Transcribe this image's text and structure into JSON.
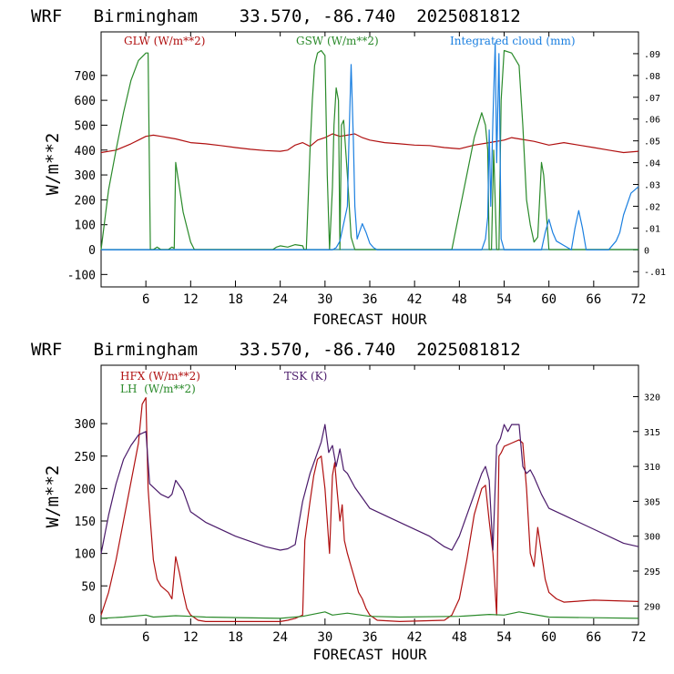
{
  "chart_data": [
    {
      "type": "line",
      "title": "WRF   Birmingham    33.570, -86.740  2025081812",
      "xlabel": "FORECAST HOUR",
      "ylabel": "W/m**2",
      "xlim": [
        0,
        72
      ],
      "ylim": [
        -150,
        875
      ],
      "y2lim": [
        -0.017,
        0.1
      ],
      "xticks": [
        "6",
        "12",
        "18",
        "24",
        "30",
        "36",
        "42",
        "48",
        "54",
        "60",
        "66",
        "72"
      ],
      "yticks": [
        "-100",
        "0",
        "100",
        "200",
        "300",
        "400",
        "500",
        "600",
        "700"
      ],
      "y2ticks": [
        "-.01",
        "0",
        ".01",
        ".02",
        ".03",
        ".04",
        ".05",
        ".06",
        ".07",
        ".08",
        ".09"
      ],
      "grid": false,
      "legend_position": "top",
      "zero_line": true,
      "series": [
        {
          "name": "GLW (W/m**2)",
          "color": "#b01010",
          "axis": "left",
          "x": [
            0,
            2,
            4,
            5,
            6,
            7,
            8,
            9,
            10,
            12,
            14,
            16,
            18,
            20,
            22,
            24,
            25,
            26,
            27,
            28,
            29,
            30,
            31,
            32,
            33,
            34,
            35,
            36,
            38,
            40,
            42,
            44,
            46,
            48,
            50,
            52,
            54,
            55,
            56,
            58,
            60,
            62,
            64,
            66,
            68,
            70,
            72
          ],
          "values": [
            390,
            400,
            425,
            440,
            455,
            460,
            455,
            450,
            445,
            430,
            425,
            418,
            410,
            403,
            398,
            395,
            400,
            420,
            430,
            415,
            440,
            450,
            465,
            455,
            460,
            465,
            450,
            440,
            430,
            425,
            420,
            418,
            410,
            405,
            420,
            430,
            440,
            450,
            445,
            435,
            420,
            430,
            420,
            410,
            400,
            390,
            395
          ]
        },
        {
          "name": "GSW (W/m**2)",
          "color": "#2a8a2a",
          "axis": "left",
          "x": [
            0,
            0.5,
            1,
            2,
            3,
            4,
            5,
            6,
            6.3,
            6.6,
            7,
            7.5,
            8,
            8.5,
            9,
            9.5,
            9.8,
            10,
            10.5,
            11,
            12,
            12.5,
            20,
            23,
            23.5,
            24,
            25,
            26,
            27,
            27.2,
            27.5,
            28,
            28.3,
            28.6,
            29,
            29.5,
            30,
            30.3,
            30.6,
            31,
            31.2,
            31.5,
            31.8,
            32,
            32.2,
            32.5,
            33,
            33.5,
            34,
            34.5,
            35,
            36,
            40,
            47,
            48,
            49,
            50,
            51,
            51.5,
            51.8,
            52,
            52.3,
            52.6,
            53,
            53.3,
            53.6,
            54,
            55,
            56,
            56.5,
            57,
            57.5,
            58,
            58.5,
            59,
            59.3,
            60,
            66,
            72
          ],
          "values": [
            0,
            120,
            240,
            400,
            550,
            680,
            760,
            790,
            790,
            0,
            0,
            10,
            0,
            0,
            0,
            10,
            5,
            350,
            250,
            150,
            30,
            0,
            0,
            0,
            10,
            15,
            10,
            20,
            15,
            0,
            0,
            400,
            600,
            740,
            790,
            800,
            780,
            300,
            0,
            250,
            500,
            650,
            600,
            0,
            500,
            520,
            300,
            50,
            0,
            0,
            0,
            0,
            0,
            0,
            150,
            300,
            450,
            550,
            500,
            400,
            0,
            0,
            400,
            0,
            0,
            600,
            800,
            790,
            740,
            500,
            200,
            100,
            30,
            50,
            350,
            300,
            0,
            0,
            0
          ]
        },
        {
          "name": "Integrated cloud (mm)",
          "color": "#1a7fe0",
          "axis": "right",
          "x": [
            0,
            31,
            31.5,
            32,
            32.5,
            33,
            33.2,
            33.5,
            33.8,
            34,
            34.3,
            34.6,
            35,
            35.5,
            36,
            36.5,
            37,
            51,
            51.5,
            51.8,
            52,
            52.2,
            52.5,
            52.8,
            53,
            53.3,
            53.6,
            54,
            59,
            59.5,
            60,
            60.5,
            61,
            62,
            63,
            63.5,
            64,
            64.5,
            65,
            68,
            69,
            69.5,
            70,
            71,
            72
          ],
          "values": [
            0,
            0,
            0.001,
            0.004,
            0.012,
            0.02,
            0.05,
            0.085,
            0.05,
            0.02,
            0.005,
            0.008,
            0.012,
            0.008,
            0.003,
            0.001,
            0,
            0,
            0.005,
            0.015,
            0.055,
            0.02,
            0.06,
            0.095,
            0.04,
            0.09,
            0.005,
            0,
            0,
            0.008,
            0.014,
            0.008,
            0.004,
            0.002,
            0,
            0.01,
            0.018,
            0.01,
            0,
            0,
            0.004,
            0.008,
            0.016,
            0.026,
            0.029
          ]
        }
      ]
    },
    {
      "type": "line",
      "title": "WRF   Birmingham    33.570, -86.740  2025081812",
      "xlabel": "FORECAST HOUR",
      "ylabel": "W/m**2",
      "xlim": [
        0,
        72
      ],
      "ylim": [
        -10,
        390
      ],
      "y2lim": [
        287.3,
        324.5
      ],
      "xticks": [
        "6",
        "12",
        "18",
        "24",
        "30",
        "36",
        "42",
        "48",
        "54",
        "60",
        "66",
        "72"
      ],
      "yticks": [
        "0",
        "50",
        "100",
        "150",
        "200",
        "250",
        "300"
      ],
      "y2ticks": [
        "290",
        "295",
        "300",
        "305",
        "310",
        "315",
        "320"
      ],
      "grid": false,
      "legend_position": "top",
      "series": [
        {
          "name": "HFX (W/m**2)",
          "color": "#b01010",
          "axis": "left",
          "x": [
            0,
            1,
            2,
            3,
            4,
            5,
            5.5,
            6,
            6.3,
            6.6,
            7,
            7.5,
            8,
            8.5,
            9,
            9.5,
            10,
            10.5,
            11,
            11.5,
            12,
            13,
            14,
            18,
            22,
            24,
            25,
            26,
            27,
            27.3,
            28,
            28.5,
            29,
            29.5,
            30,
            30.3,
            30.6,
            31,
            31.3,
            31.6,
            32,
            32.3,
            32.6,
            33,
            33.5,
            34,
            34.5,
            35,
            35.5,
            36,
            37,
            40,
            46,
            47,
            48,
            49,
            50,
            51,
            51.5,
            52,
            52.5,
            53,
            53.3,
            53.6,
            54,
            55,
            56,
            56.5,
            57,
            57.5,
            58,
            58.5,
            59,
            59.5,
            60,
            61,
            62,
            66,
            72
          ],
          "values": [
            5,
            40,
            90,
            150,
            210,
            270,
            330,
            340,
            200,
            150,
            90,
            60,
            50,
            45,
            40,
            30,
            95,
            70,
            40,
            15,
            5,
            -3,
            -5,
            -5,
            -5,
            -5,
            -3,
            0,
            5,
            120,
            180,
            220,
            245,
            250,
            200,
            150,
            100,
            220,
            240,
            200,
            150,
            175,
            120,
            100,
            80,
            60,
            40,
            30,
            15,
            5,
            -3,
            -5,
            -3,
            5,
            30,
            90,
            160,
            200,
            205,
            150,
            100,
            5,
            250,
            255,
            265,
            270,
            275,
            270,
            200,
            100,
            80,
            140,
            100,
            60,
            40,
            30,
            25,
            28,
            26
          ]
        },
        {
          "name": "LH  (W/m**2)",
          "color": "#2a8a2a",
          "axis": "left",
          "x": [
            0,
            3,
            6,
            7,
            10,
            12,
            14,
            24,
            27,
            30,
            31,
            33,
            36,
            40,
            48,
            52,
            54,
            56,
            60,
            66,
            72
          ],
          "values": [
            0,
            2,
            5,
            2,
            4,
            3,
            2,
            0,
            3,
            10,
            5,
            8,
            3,
            2,
            3,
            6,
            5,
            10,
            2,
            1,
            0
          ]
        },
        {
          "name": "TSK (K)",
          "color": "#4a1a6a",
          "axis": "right",
          "x": [
            0,
            1,
            2,
            3,
            4,
            5,
            6,
            6.5,
            7,
            8,
            9,
            9.5,
            10,
            11,
            12,
            14,
            18,
            22,
            24,
            25,
            26,
            27,
            28,
            29,
            29.5,
            30,
            30.5,
            31,
            31.5,
            32,
            32.5,
            33,
            34,
            36,
            40,
            44,
            46,
            47,
            48,
            49,
            50,
            51,
            51.5,
            52,
            52.5,
            53,
            53.5,
            54,
            54.5,
            55,
            56,
            56.5,
            57,
            57.5,
            58,
            59,
            60,
            62,
            66,
            70,
            72
          ],
          "values": [
            297.5,
            303,
            307.5,
            311,
            313,
            314.5,
            315,
            307.5,
            307,
            306,
            305.5,
            306,
            308,
            306.5,
            303.5,
            302,
            300,
            298.5,
            298,
            298.2,
            298.8,
            305,
            309,
            312,
            313.5,
            316,
            312,
            313,
            310,
            312.5,
            309.5,
            309,
            307,
            304,
            302,
            300,
            298.5,
            298,
            300,
            303,
            306,
            309,
            310,
            308,
            298,
            313,
            314,
            316,
            315,
            316,
            316,
            310,
            309,
            309.5,
            308.5,
            306,
            304,
            303,
            301,
            299,
            298.5
          ]
        }
      ]
    }
  ]
}
